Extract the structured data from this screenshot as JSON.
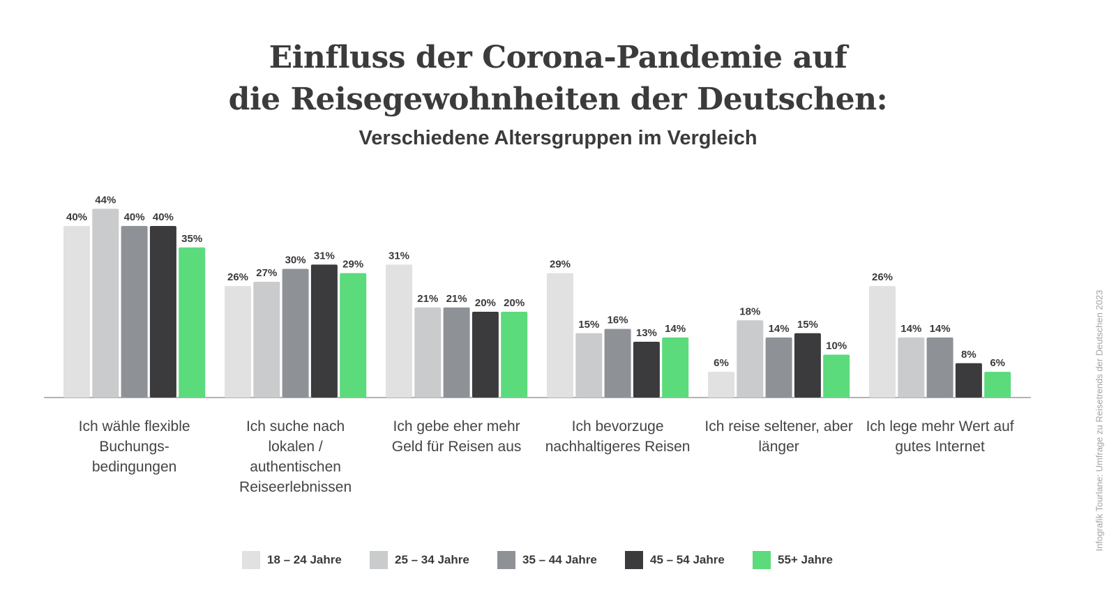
{
  "chart_data": {
    "type": "bar",
    "title_line1": "Einfluss der Corona-Pandemie auf",
    "title_line2": "die Reisegewohnheiten der Deutschen:",
    "subtitle": "Verschiedene Altersgruppen im Vergleich",
    "categories": [
      [
        "Ich wähle flexible",
        "Buchungs-",
        "bedingungen"
      ],
      [
        "Ich suche nach",
        "lokalen /",
        "authentischen",
        "Reiseerlebnissen"
      ],
      [
        "Ich gebe eher mehr",
        "Geld für Reisen aus"
      ],
      [
        "Ich bevorzuge",
        "nachhaltigeres Reisen"
      ],
      [
        "Ich reise seltener, aber",
        "länger"
      ],
      [
        "Ich lege mehr Wert auf",
        "gutes Internet"
      ]
    ],
    "series": [
      {
        "name": "18 – 24 Jahre",
        "color": "#e1e1e1",
        "values": [
          40,
          26,
          31,
          29,
          6,
          26
        ]
      },
      {
        "name": "25 – 34 Jahre",
        "color": "#c9cbcc",
        "values": [
          44,
          27,
          21,
          15,
          18,
          14
        ]
      },
      {
        "name": "35 – 44 Jahre",
        "color": "#8e9196",
        "values": [
          40,
          30,
          21,
          16,
          14,
          14
        ]
      },
      {
        "name": "45 – 54 Jahre",
        "color": "#3b3b3e",
        "values": [
          40,
          31,
          20,
          13,
          15,
          8
        ]
      },
      {
        "name": "55+ Jahre",
        "color": "#5bdb7c",
        "values": [
          35,
          29,
          20,
          14,
          10,
          6
        ]
      }
    ],
    "value_suffix": "%",
    "ylim": [
      0,
      44
    ],
    "grid": false,
    "legend_position": "bottom"
  },
  "source_note": "Infografik Tourlane: Umfrage zu Reisetrends der Deutschen 2023"
}
